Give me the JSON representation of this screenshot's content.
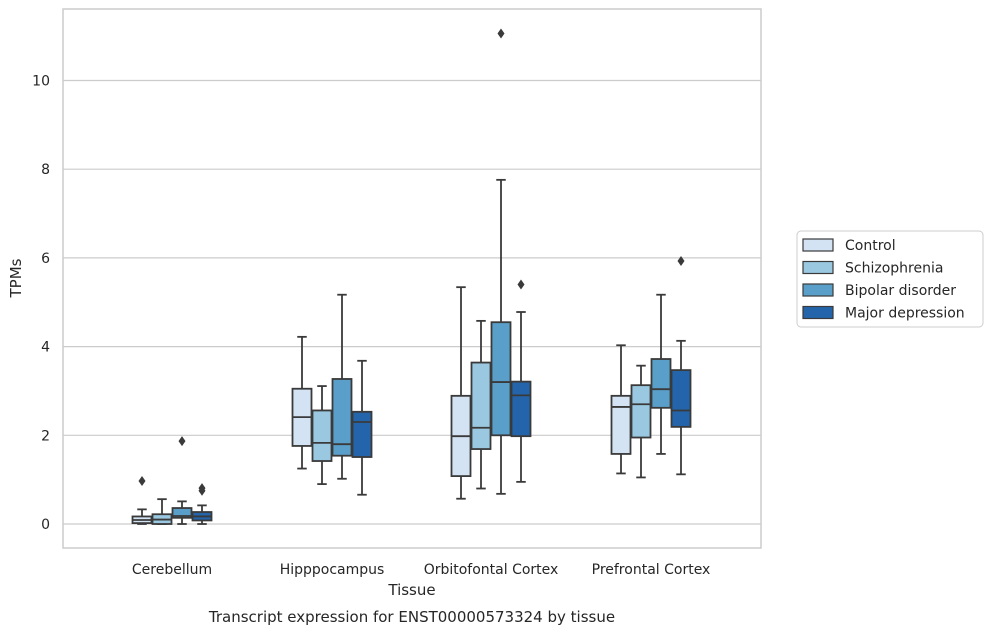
{
  "chart_data": {
    "type": "box",
    "title": "Transcript expression for ENST00000573324 by tissue",
    "xlabel": "Tissue",
    "ylabel": "TPMs",
    "ylim": [
      -0.5,
      11.6
    ],
    "yticks": [
      0,
      2,
      4,
      6,
      8,
      10
    ],
    "grid": "horizontal",
    "legend_position": "right",
    "categories": [
      "Cerebellum",
      "Hipppocampus",
      "Orbitofontal Cortex",
      "Prefrontal Cortex"
    ],
    "series": [
      {
        "name": "Control",
        "color": "#d3e3f3",
        "boxes": [
          {
            "whislo": 0.0,
            "q1": 0.02,
            "med": 0.09,
            "q3": 0.17,
            "whishi": 0.33,
            "fliers": [
              0.97
            ]
          },
          {
            "whislo": 1.25,
            "q1": 1.76,
            "med": 2.41,
            "q3": 3.05,
            "whishi": 4.22,
            "fliers": []
          },
          {
            "whislo": 0.57,
            "q1": 1.08,
            "med": 1.98,
            "q3": 2.89,
            "whishi": 5.34,
            "fliers": []
          },
          {
            "whislo": 1.14,
            "q1": 1.58,
            "med": 2.64,
            "q3": 2.89,
            "whishi": 4.03,
            "fliers": []
          }
        ]
      },
      {
        "name": "Schizophrenia",
        "color": "#9ac8e0",
        "boxes": [
          {
            "whislo": 0.0,
            "q1": 0.0,
            "med": 0.1,
            "q3": 0.22,
            "whishi": 0.56,
            "fliers": []
          },
          {
            "whislo": 0.9,
            "q1": 1.42,
            "med": 1.83,
            "q3": 2.56,
            "whishi": 3.11,
            "fliers": []
          },
          {
            "whislo": 0.8,
            "q1": 1.69,
            "med": 2.17,
            "q3": 3.64,
            "whishi": 4.58,
            "fliers": []
          },
          {
            "whislo": 1.05,
            "q1": 1.95,
            "med": 2.7,
            "q3": 3.13,
            "whishi": 3.57,
            "fliers": []
          }
        ]
      },
      {
        "name": "Bipolar disorder",
        "color": "#5a9fca",
        "boxes": [
          {
            "whislo": 0.0,
            "q1": 0.14,
            "med": 0.18,
            "q3": 0.36,
            "whishi": 0.51,
            "fliers": [
              1.87
            ]
          },
          {
            "whislo": 1.02,
            "q1": 1.54,
            "med": 1.8,
            "q3": 3.27,
            "whishi": 5.17,
            "fliers": []
          },
          {
            "whislo": 0.68,
            "q1": 2.0,
            "med": 3.2,
            "q3": 4.55,
            "whishi": 7.76,
            "fliers": [
              11.06
            ]
          },
          {
            "whislo": 1.58,
            "q1": 2.62,
            "med": 3.04,
            "q3": 3.72,
            "whishi": 5.17,
            "fliers": []
          }
        ]
      },
      {
        "name": "Major depression",
        "color": "#2464aa",
        "boxes": [
          {
            "whislo": 0.0,
            "q1": 0.08,
            "med": 0.17,
            "q3": 0.27,
            "whishi": 0.42,
            "fliers": [
              0.75,
              0.81
            ]
          },
          {
            "whislo": 0.66,
            "q1": 1.51,
            "med": 2.3,
            "q3": 2.53,
            "whishi": 3.68,
            "fliers": []
          },
          {
            "whislo": 0.95,
            "q1": 1.98,
            "med": 2.9,
            "q3": 3.21,
            "whishi": 4.78,
            "fliers": [
              5.4
            ]
          },
          {
            "whislo": 1.12,
            "q1": 2.19,
            "med": 2.56,
            "q3": 3.47,
            "whishi": 4.13,
            "fliers": [
              5.93
            ]
          }
        ]
      }
    ]
  }
}
